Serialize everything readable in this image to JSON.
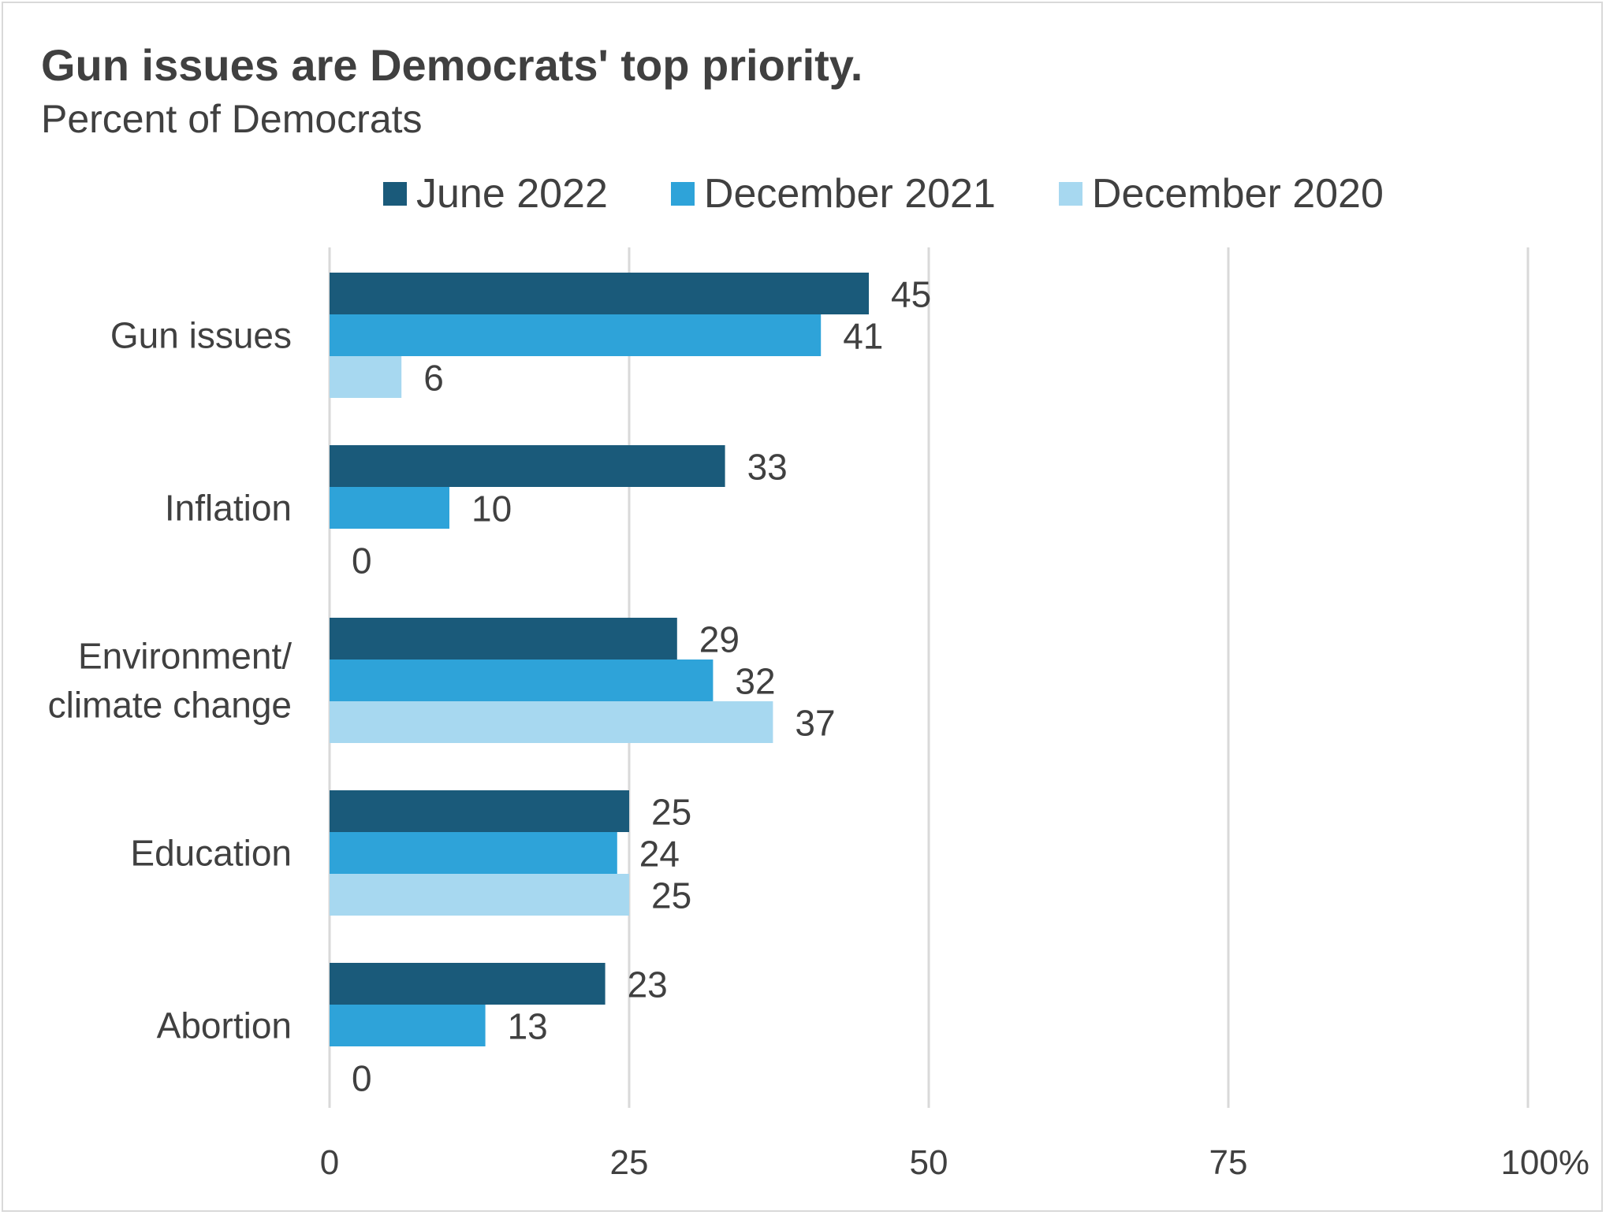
{
  "chart_data": {
    "type": "bar",
    "orientation": "horizontal",
    "title": "Gun issues are Democrats' top priority.",
    "subtitle": "Percent of Democrats",
    "categories": [
      [
        "Gun issues"
      ],
      [
        "Inflation"
      ],
      [
        "Environment/",
        "climate change"
      ],
      [
        "Education"
      ],
      [
        "Abortion"
      ]
    ],
    "series": [
      {
        "name": "June 2022",
        "color": "#1a5a7a",
        "values": [
          45,
          33,
          29,
          25,
          23
        ]
      },
      {
        "name": "December 2021",
        "color": "#2ea3d9",
        "values": [
          41,
          10,
          32,
          24,
          13
        ]
      },
      {
        "name": "December 2020",
        "color": "#a7d8f0",
        "values": [
          6,
          0,
          37,
          25,
          0
        ]
      }
    ],
    "xlim": [
      0,
      100
    ],
    "xticks": [
      "0",
      "25",
      "50",
      "75",
      "100%"
    ],
    "xtick_values": [
      0,
      25,
      50,
      75,
      100
    ],
    "grid": true,
    "legend_position": "top",
    "gridline_color": "#d9d9d9"
  }
}
